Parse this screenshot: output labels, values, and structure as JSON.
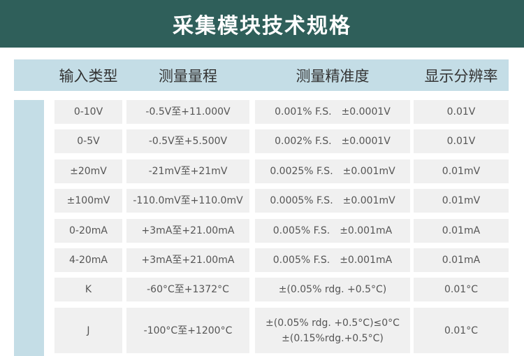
{
  "title": "采集模块技术规格",
  "headers": [
    "输入类型",
    "测量量程",
    "测量精准度",
    "显示分辨率"
  ],
  "rows": [
    [
      "0-10V",
      "-0.5V至+11.000V",
      "0.001% F.S.　±0.0001V",
      "0.01V"
    ],
    [
      "0-5V",
      "-0.5V至+5.500V",
      "0.002% F.S.　±0.0001V",
      "0.01V"
    ],
    [
      "±20mV",
      "-21mV至+21mV",
      "0.0025% F.S.　±0.001mV",
      "0.01mV"
    ],
    [
      "±100mV",
      "-110.0mV至+110.0mV",
      "0.0005% F.S.　±0.001mV",
      "0.01mV"
    ],
    [
      "0-20mA",
      "+3mA至+21.00mA",
      "0.005% F.S.　±0.001mA",
      "0.01mA"
    ],
    [
      "4-20mA",
      "+3mA至+21.00mA",
      "0.005% F.S.　±0.001mA",
      "0.01mA"
    ],
    [
      "K",
      "-60°C至+1372°C",
      "±(0.05% rdg. +0.5°C)",
      "0.01°C"
    ],
    [
      "J",
      "-100°C至+1200°C",
      "±(0.05% rdg. +0.5°C)≤0°C\n±(0.15%rdg.+0.5°C)",
      "0.01°C"
    ]
  ]
}
